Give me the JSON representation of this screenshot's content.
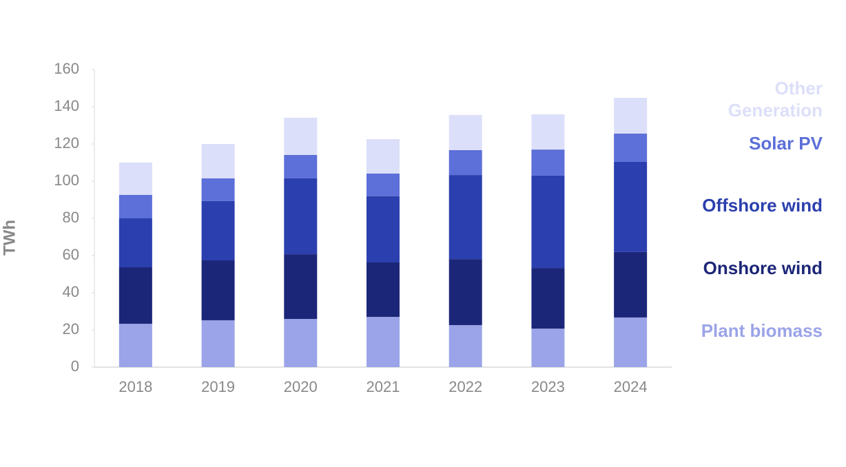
{
  "chart_data": {
    "type": "stacked_bar",
    "y_label": "TWh",
    "categories": [
      "2018",
      "2019",
      "2020",
      "2021",
      "2022",
      "2023",
      "2024"
    ],
    "series": [
      {
        "name": "Plant biomass",
        "color": "#9ba4e8",
        "values": [
          23.3,
          25.2,
          25.9,
          27.0,
          22.6,
          20.7,
          26.7
        ]
      },
      {
        "name": "Onshore wind",
        "color": "#1c2678",
        "values": [
          30.4,
          32.2,
          34.8,
          29.3,
          35.5,
          32.6,
          35.2
        ]
      },
      {
        "name": "Offshore wind",
        "color": "#2b3fae",
        "values": [
          26.3,
          31.9,
          40.8,
          35.6,
          45.2,
          49.7,
          48.5
        ]
      },
      {
        "name": "Solar PV",
        "color": "#5d6fd8",
        "values": [
          12.6,
          12.2,
          12.6,
          12.2,
          13.4,
          14.0,
          15.2
        ]
      },
      {
        "name": "Other Generation",
        "color": "#dcdff9",
        "values": [
          17.4,
          18.5,
          20.0,
          18.5,
          18.9,
          18.9,
          19.2
        ]
      }
    ],
    "ylim": [
      0,
      160
    ],
    "yticks": [
      0,
      20,
      40,
      60,
      80,
      100,
      120,
      140,
      160
    ],
    "grid": false
  }
}
